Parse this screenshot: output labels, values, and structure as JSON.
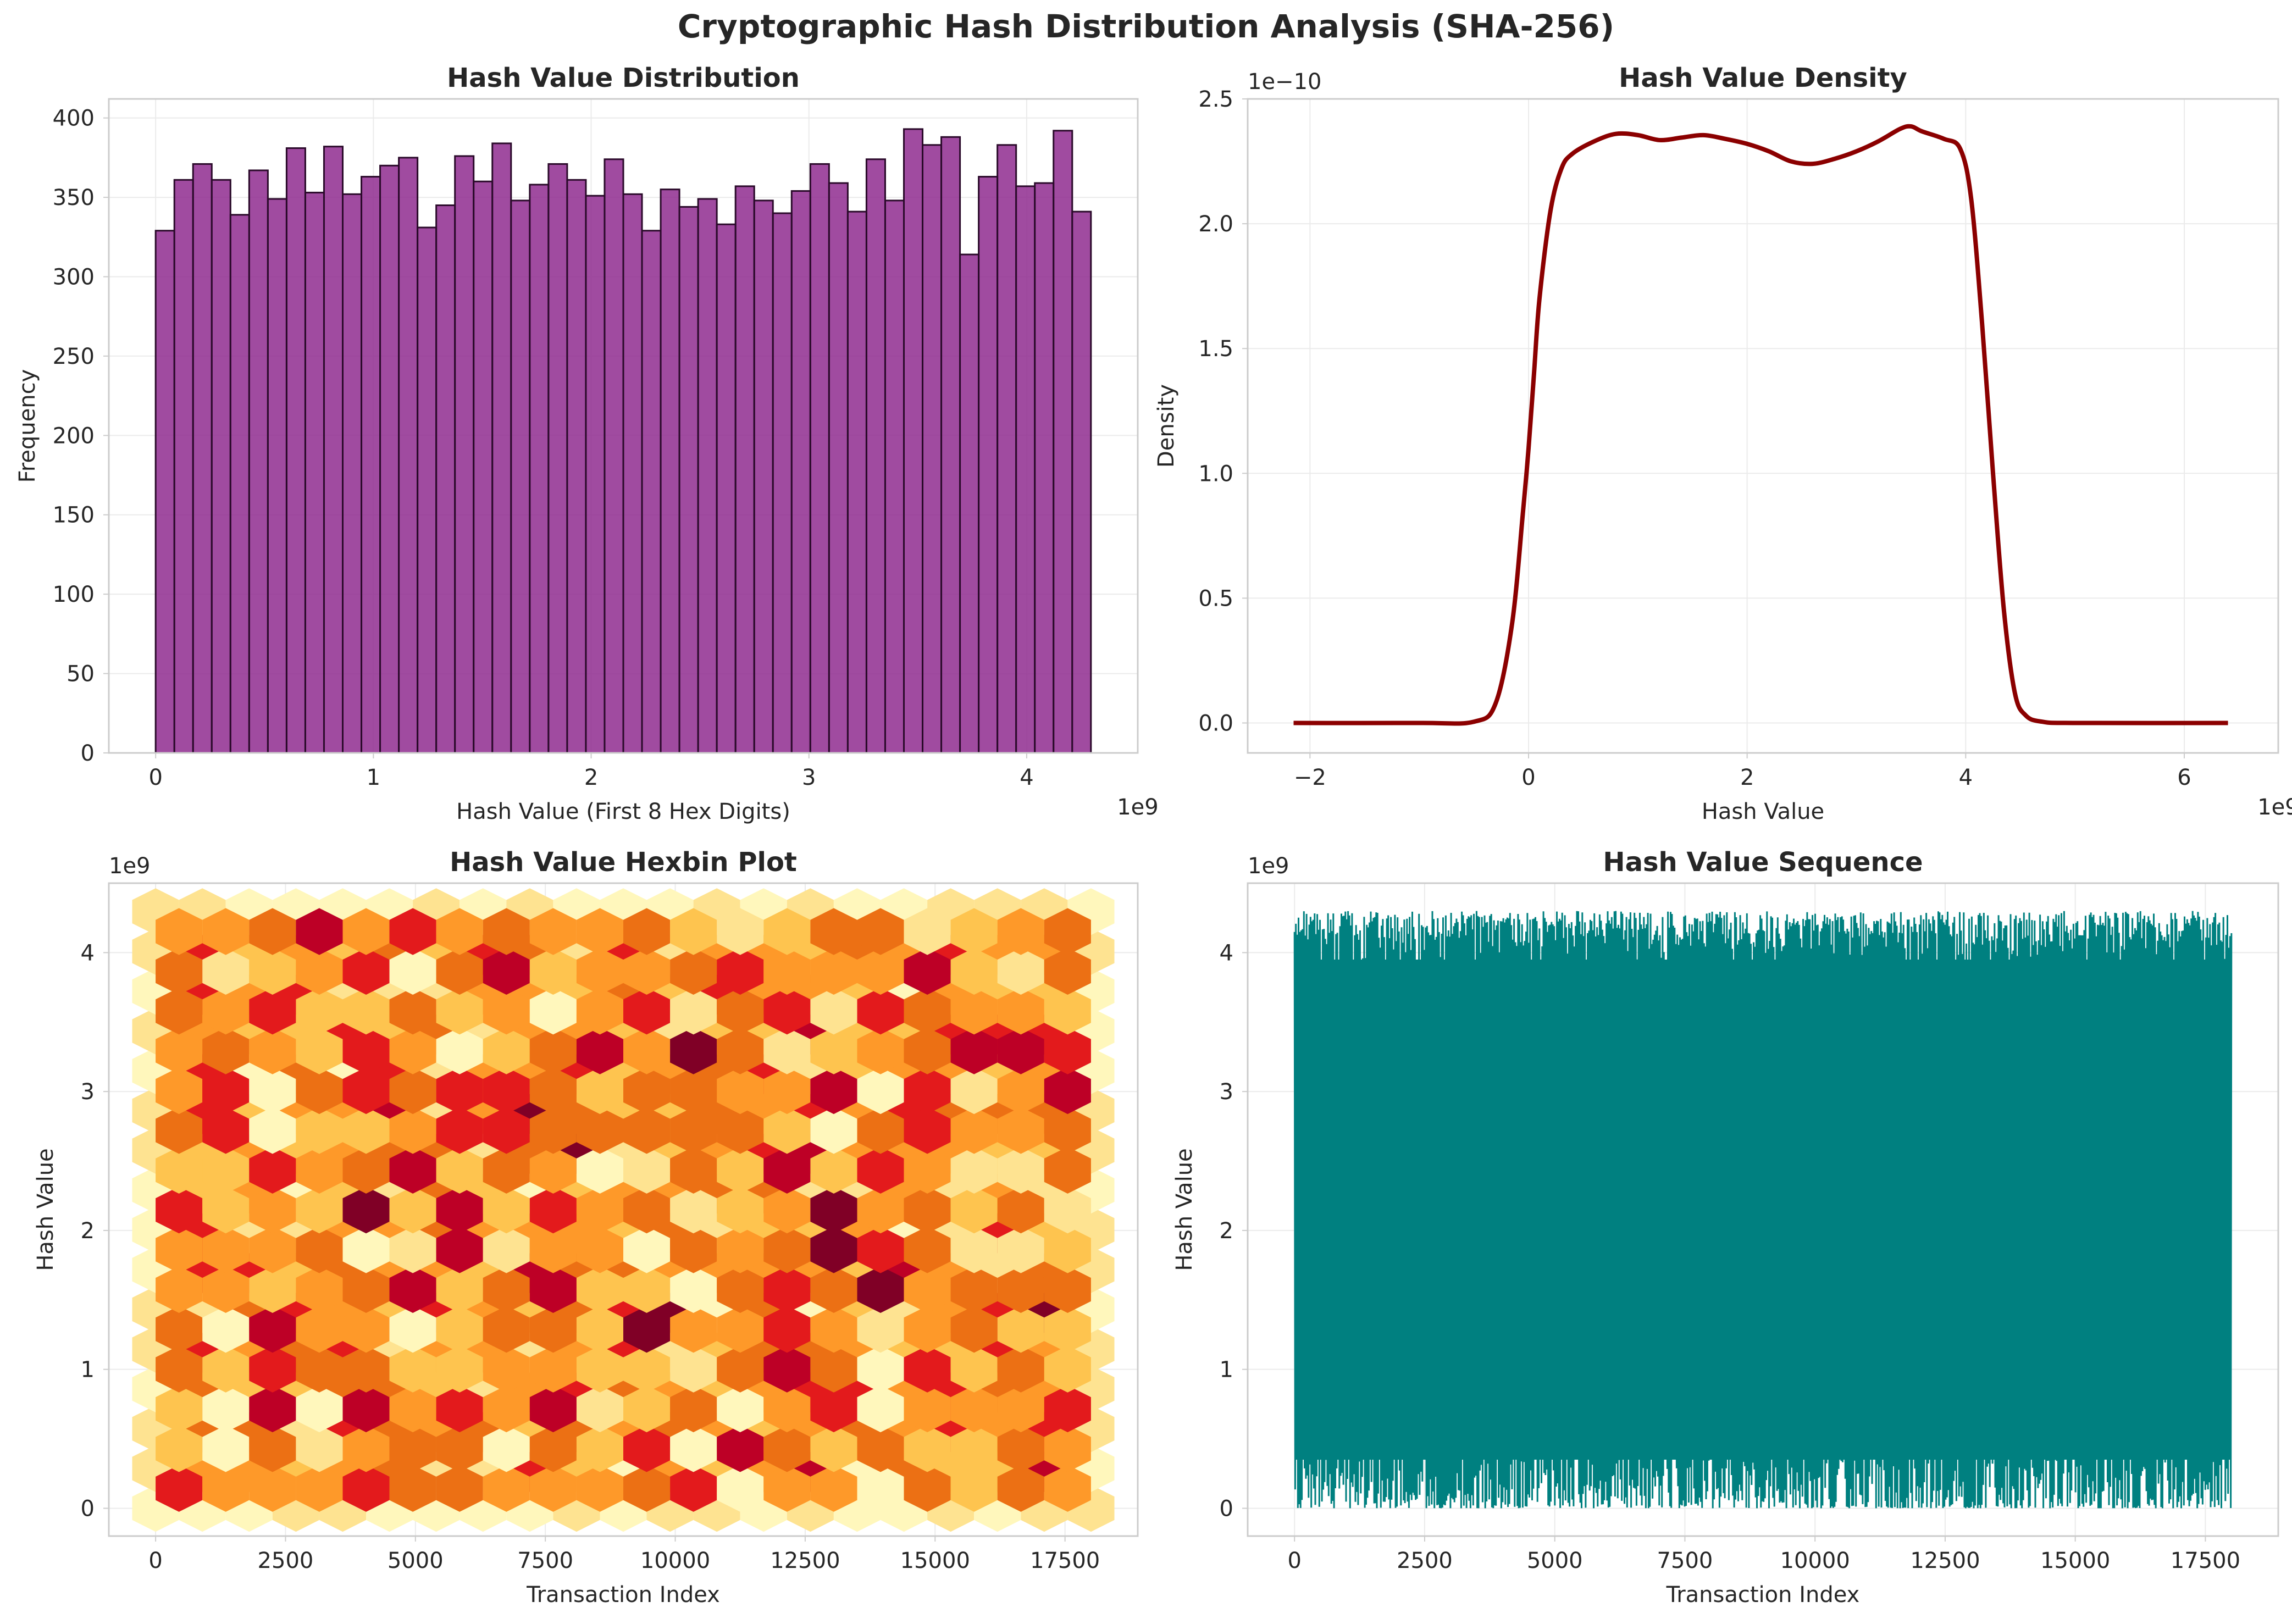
{
  "figure": {
    "title": "Cryptographic Hash Distribution Analysis (SHA-256)",
    "background": "#ffffff",
    "axes_face": "#ffffff",
    "grid_color": "#ebebeb",
    "spine_color": "#cccccc",
    "text_color": "#262626"
  },
  "chart_data": [
    {
      "id": "hist",
      "type": "bar",
      "title": "Hash Value Distribution",
      "xlabel": "Hash Value (First 8 Hex Digits)",
      "ylabel": "Frequency",
      "x_offset_text": "1e9",
      "xlim": [
        -0.215,
        4.51
      ],
      "ylim": [
        0,
        412
      ],
      "xticks": [
        0,
        1,
        2,
        3,
        4
      ],
      "xtick_labels": [
        "0",
        "1",
        "2",
        "3",
        "4"
      ],
      "yticks": [
        0,
        50,
        100,
        150,
        200,
        250,
        300,
        350,
        400
      ],
      "ytick_labels": [
        "0",
        "50",
        "100",
        "150",
        "200",
        "250",
        "300",
        "350",
        "400"
      ],
      "bin_start": 0,
      "bin_end": 4.295,
      "values": [
        329,
        361,
        371,
        361,
        339,
        367,
        349,
        381,
        353,
        382,
        352,
        363,
        370,
        375,
        331,
        345,
        376,
        360,
        384,
        348,
        358,
        371,
        361,
        351,
        374,
        352,
        329,
        355,
        344,
        349,
        333,
        357,
        348,
        340,
        354,
        371,
        359,
        341,
        374,
        348,
        393,
        383,
        388,
        314,
        363,
        383,
        357,
        359,
        392,
        341
      ],
      "color": "#8b238b",
      "edge_color": "#2a0a2a",
      "grid": true
    },
    {
      "id": "density",
      "type": "line",
      "title": "Hash Value Density",
      "xlabel": "Hash Value",
      "ylabel": "Density",
      "x_offset_text": "1e9",
      "y_offset_text": "1e−10",
      "xlim": [
        -2.57,
        6.86
      ],
      "ylim": [
        -0.12,
        2.5
      ],
      "xticks": [
        -2,
        0,
        2,
        4,
        6
      ],
      "xtick_labels": [
        "−2",
        "0",
        "2",
        "4",
        "6"
      ],
      "yticks": [
        0,
        0.5,
        1.0,
        1.5,
        2.0,
        2.5
      ],
      "ytick_labels": [
        "0.0",
        "0.5",
        "1.0",
        "1.5",
        "2.0",
        "2.5"
      ],
      "x": [
        -2.15,
        -1.0,
        -0.5,
        -0.3,
        -0.15,
        -0.05,
        0.0,
        0.05,
        0.1,
        0.2,
        0.3,
        0.4,
        0.6,
        0.8,
        1.0,
        1.2,
        1.4,
        1.6,
        1.8,
        2.0,
        2.2,
        2.4,
        2.6,
        2.8,
        3.0,
        3.2,
        3.4,
        3.5,
        3.6,
        3.8,
        3.95,
        4.05,
        4.15,
        4.25,
        4.35,
        4.45,
        4.55,
        4.7,
        5.0,
        6.4
      ],
      "y": [
        0,
        0,
        0.005,
        0.08,
        0.4,
        0.85,
        1.1,
        1.4,
        1.7,
        2.05,
        2.22,
        2.28,
        2.33,
        2.36,
        2.355,
        2.335,
        2.345,
        2.355,
        2.34,
        2.32,
        2.29,
        2.25,
        2.24,
        2.26,
        2.29,
        2.33,
        2.38,
        2.39,
        2.37,
        2.34,
        2.3,
        2.1,
        1.6,
        1.0,
        0.45,
        0.12,
        0.03,
        0.005,
        0,
        0
      ],
      "color": "#8b0000",
      "grid": true
    },
    {
      "id": "hexbin",
      "type": "heatmap",
      "title": "Hash Value Hexbin Plot",
      "xlabel": "Transaction Index",
      "ylabel": "Hash Value",
      "y_offset_text": "1e9",
      "xlim": [
        -900,
        18900
      ],
      "ylim": [
        -0.2,
        4.5
      ],
      "xticks": [
        0,
        2500,
        5000,
        7500,
        10000,
        12500,
        15000,
        17500
      ],
      "xtick_labels": [
        "0",
        "2500",
        "5000",
        "7500",
        "10000",
        "12500",
        "15000",
        "17500"
      ],
      "yticks": [
        0,
        1,
        2,
        3,
        4
      ],
      "ytick_labels": [
        "0",
        "1",
        "2",
        "3",
        "4"
      ],
      "data_x_range": [
        0,
        18000
      ],
      "data_y_range": [
        0,
        4.295
      ],
      "colormap": "YlOrRd",
      "colors": [
        "#fff7bc",
        "#fee391",
        "#fec44f",
        "#fe9929",
        "#ec7014",
        "#e31a1c",
        "#bd0026",
        "#800026"
      ],
      "grid": true
    },
    {
      "id": "sequence",
      "type": "line",
      "title": "Hash Value Sequence",
      "xlabel": "Transaction Index",
      "ylabel": "Hash Value",
      "y_offset_text": "1e9",
      "xlim": [
        -900,
        18900
      ],
      "ylim": [
        -0.2,
        4.5
      ],
      "xticks": [
        0,
        2500,
        5000,
        7500,
        10000,
        12500,
        15000,
        17500
      ],
      "xtick_labels": [
        "0",
        "2500",
        "5000",
        "7500",
        "10000",
        "12500",
        "15000",
        "17500"
      ],
      "yticks": [
        0,
        1,
        2,
        3,
        4
      ],
      "ytick_labels": [
        "0",
        "1",
        "2",
        "3",
        "4"
      ],
      "data_x_range": [
        0,
        18000
      ],
      "color": "#008080",
      "grid": true
    }
  ]
}
